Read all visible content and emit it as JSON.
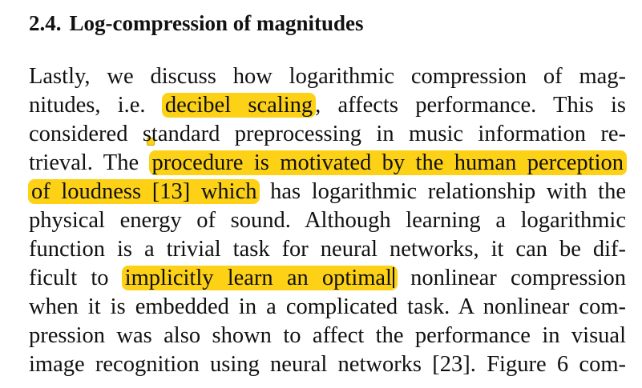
{
  "section": {
    "number": "2.4.",
    "title": "Log-compression of magnitudes"
  },
  "paragraph": {
    "l1": "Lastly, we discuss how logarithmic compression of mag-",
    "l2_pre": "nitudes, i.e.",
    "l2_hl": "decibel scaling",
    "l2_post": ", affects performance.  This is",
    "l3": "considered standard preprocessing in music information re-",
    "l4_pre": "trieval. The",
    "l4_hl": "procedure is motivated by the human perception",
    "l5_hl": "of loudness [13] which",
    "l5_post": "has logarithmic relationship with the",
    "l6": "physical energy of sound.  Although learning a logarithmic",
    "l7": "function is a trivial task for neural networks, it can be dif-",
    "l8_pre": "ficult to",
    "l8_hl": "implicitly learn an optimal",
    "l8_post": "nonlinear compression",
    "l9": "when it is embedded in a complicated task. A nonlinear com-",
    "l10": "pression was also shown to affect the performance in visual",
    "l11": "image recognition using neural networks [23]. Figure 6 com-"
  },
  "colors": {
    "highlight": "#fcd116",
    "text": "#111111"
  }
}
